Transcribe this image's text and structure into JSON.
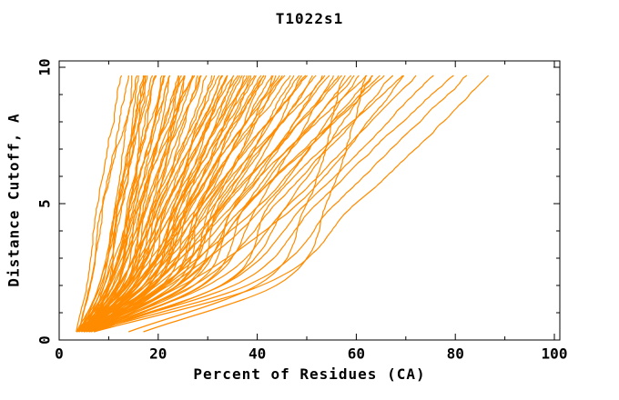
{
  "chart_data": {
    "type": "line",
    "title": "T1022s1",
    "xlabel": "Percent of Residues (CA)",
    "ylabel": "Distance Cutoff, A",
    "xlim": [
      0,
      100
    ],
    "ylim": [
      0,
      10
    ],
    "x_ticks_major": [
      0,
      20,
      40,
      60,
      80,
      100
    ],
    "x_ticks_minor": [
      10,
      30,
      50,
      70,
      90
    ],
    "y_ticks_major": [
      0,
      5,
      10
    ],
    "y_ticks_minor": [
      1,
      2,
      3,
      4,
      6,
      7,
      8,
      9
    ],
    "grid": false,
    "legend": "none",
    "series_color": "#FF8C00",
    "axis_color": "#000000",
    "background": "#ffffff",
    "n_models": 93,
    "cutoff_knots": [
      0.3,
      2,
      5,
      9.75
    ],
    "sample_step": 0.1,
    "jitter_amp": 0.55,
    "seed": 1022,
    "curves": [
      [
        4,
        6.5,
        9,
        13.5
      ],
      [
        5,
        8.5,
        11,
        15
      ],
      [
        6,
        10,
        12,
        16
      ],
      [
        4.5,
        8,
        12.5,
        16.5
      ],
      [
        5.5,
        10,
        11.5,
        17
      ],
      [
        6.5,
        9,
        13,
        17.5
      ],
      [
        7,
        12,
        14.5,
        18
      ],
      [
        3.5,
        8.5,
        12,
        18.5
      ],
      [
        4,
        8,
        12,
        19
      ],
      [
        5,
        10,
        14,
        19.5
      ],
      [
        6,
        12,
        14,
        20
      ],
      [
        4.5,
        9.5,
        15,
        20.5
      ],
      [
        5.5,
        11.5,
        13.5,
        21
      ],
      [
        6.5,
        10,
        15.5,
        21.5
      ],
      [
        7,
        13.5,
        17,
        22
      ],
      [
        3.5,
        10,
        14,
        22.5
      ],
      [
        4,
        9,
        14.5,
        23
      ],
      [
        5,
        11.5,
        16.5,
        23.5
      ],
      [
        6,
        13.5,
        16.5,
        24
      ],
      [
        4.5,
        11,
        18,
        24.5
      ],
      [
        5.5,
        13,
        16,
        25
      ],
      [
        6.5,
        11,
        18,
        25.5
      ],
      [
        7,
        15.5,
        20,
        26
      ],
      [
        3.5,
        11,
        16.5,
        26.5
      ],
      [
        4,
        10.5,
        16.5,
        27
      ],
      [
        5,
        13,
        19,
        27.5
      ],
      [
        6,
        15,
        19,
        28
      ],
      [
        4.5,
        12,
        20.5,
        28.5
      ],
      [
        5.5,
        14.5,
        18,
        29
      ],
      [
        6.5,
        12.5,
        20.5,
        30
      ],
      [
        7,
        18,
        23,
        31
      ],
      [
        3.5,
        13,
        19,
        31.5
      ],
      [
        4,
        12,
        19.5,
        32
      ],
      [
        5,
        14.5,
        22,
        32.5
      ],
      [
        6,
        17,
        22,
        33
      ],
      [
        4.5,
        13.5,
        23.5,
        33.5
      ],
      [
        5.5,
        16,
        20.5,
        34
      ],
      [
        6.5,
        13.5,
        23,
        34.5
      ],
      [
        7,
        19.5,
        26,
        35
      ],
      [
        3.5,
        14,
        21.5,
        35.5
      ],
      [
        4,
        13,
        21.5,
        36
      ],
      [
        5,
        16,
        24.5,
        36.5
      ],
      [
        6,
        19,
        24,
        37
      ],
      [
        4.5,
        15,
        26,
        37.5
      ],
      [
        5.5,
        18,
        23,
        38
      ],
      [
        6.5,
        14.5,
        25.5,
        38.5
      ],
      [
        7,
        21.5,
        29,
        39
      ],
      [
        3.5,
        15.5,
        24,
        40
      ],
      [
        4,
        14,
        24,
        40.5
      ],
      [
        5,
        17.5,
        27.5,
        41
      ],
      [
        6,
        21,
        26.5,
        41.5
      ],
      [
        4.5,
        16,
        29.5,
        42
      ],
      [
        5.5,
        19.5,
        25,
        42.5
      ],
      [
        6.5,
        15.5,
        28.5,
        43
      ],
      [
        7,
        23.5,
        32,
        44
      ],
      [
        3.5,
        17,
        26.5,
        44.5
      ],
      [
        4,
        15.5,
        26.5,
        45
      ],
      [
        5,
        19,
        30,
        45.5
      ],
      [
        6,
        23,
        29,
        46
      ],
      [
        4.5,
        17.5,
        32.5,
        47
      ],
      [
        5.5,
        21.5,
        28,
        47.5
      ],
      [
        6.5,
        17,
        31.5,
        48
      ],
      [
        7,
        26,
        35.5,
        49
      ],
      [
        3.5,
        19,
        29.5,
        50
      ],
      [
        4,
        17,
        29.5,
        50.5
      ],
      [
        5,
        21,
        33.5,
        51
      ],
      [
        6,
        25.5,
        32.5,
        52
      ],
      [
        4.5,
        19.5,
        36.5,
        53
      ],
      [
        5.5,
        24,
        31,
        54
      ],
      [
        6.5,
        18.5,
        35.5,
        55
      ],
      [
        7,
        29,
        40.5,
        56
      ],
      [
        3.5,
        21,
        33.5,
        57
      ],
      [
        4,
        19,
        33.5,
        58
      ],
      [
        5,
        24,
        38.5,
        59
      ],
      [
        6,
        28.5,
        37.5,
        60
      ],
      [
        4.5,
        22,
        42,
        61
      ],
      [
        5.5,
        27,
        35.5,
        62
      ],
      [
        6.5,
        20.5,
        40.5,
        63
      ],
      [
        7,
        32.5,
        46,
        64
      ],
      [
        3.5,
        24,
        38,
        65
      ],
      [
        4,
        21.5,
        38,
        66
      ],
      [
        5,
        27,
        44,
        67.5
      ],
      [
        6,
        32.5,
        42.5,
        69
      ],
      [
        4.5,
        25,
        48,
        70.5
      ],
      [
        5.5,
        30,
        47,
        73
      ],
      [
        6,
        33,
        50,
        76
      ],
      [
        5,
        35,
        52,
        79.5
      ],
      [
        6,
        38,
        56,
        83
      ],
      [
        7,
        41,
        60,
        87
      ],
      [
        14,
        40,
        50,
        58
      ],
      [
        17,
        44,
        54,
        62
      ],
      [
        3.5,
        5.5,
        7.5,
        13
      ],
      [
        4,
        6,
        9,
        15.5
      ]
    ]
  }
}
